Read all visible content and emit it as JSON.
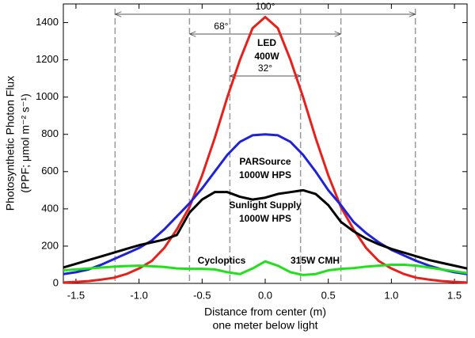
{
  "chart_data": {
    "type": "line",
    "xlabel": [
      "Distance from center (m)",
      "one meter below light"
    ],
    "ylabel": [
      "Photosynthetic Photon Flux",
      "(PPF; μmol m⁻² s⁻¹)"
    ],
    "xlim": [
      -1.6,
      1.6
    ],
    "ylim": [
      0,
      1500
    ],
    "xticks": [
      -1.5,
      {
        "value": -1.0,
        "label": "-1.0"
      },
      -0.5,
      {
        "value": 0,
        "label": "0.0"
      },
      0.5,
      {
        "value": 1.0,
        "label": "1.0"
      },
      1.5
    ],
    "yticks": [
      0,
      200,
      400,
      600,
      800,
      1000,
      1200,
      1400
    ],
    "x": [
      -1.6,
      -1.5,
      -1.4,
      -1.3,
      -1.2,
      -1.1,
      -1.0,
      -0.9,
      -0.8,
      -0.7,
      -0.6,
      -0.5,
      -0.4,
      -0.3,
      -0.2,
      -0.1,
      0,
      0.1,
      0.2,
      0.3,
      0.4,
      0.5,
      0.6,
      0.7,
      0.8,
      0.9,
      1.0,
      1.1,
      1.2,
      1.3,
      1.4,
      1.5,
      1.6
    ],
    "series": [
      {
        "labels": [
          [
            "LED",
            "400W"
          ]
        ],
        "color": "#e8201c",
        "values": [
          5,
          8,
          12,
          20,
          30,
          50,
          80,
          120,
          190,
          290,
          410,
          580,
          780,
          1000,
          1200,
          1370,
          1430,
          1370,
          1200,
          1000,
          780,
          580,
          410,
          290,
          190,
          120,
          80,
          50,
          30,
          20,
          12,
          8,
          5
        ]
      },
      {
        "labels": [
          [
            "PARSource",
            "1000W HPS"
          ]
        ],
        "color": "#1f22d8",
        "values": [
          50,
          60,
          75,
          100,
          130,
          160,
          190,
          230,
          290,
          360,
          430,
          510,
          600,
          690,
          760,
          795,
          800,
          795,
          760,
          690,
          600,
          500,
          420,
          330,
          270,
          220,
          180,
          150,
          120,
          95,
          75,
          60,
          50
        ]
      },
      {
        "labels": [
          [
            "Sunlight Supply",
            "1000W HPS"
          ]
        ],
        "color": "#000000",
        "values": [
          85,
          105,
          125,
          145,
          165,
          185,
          205,
          220,
          235,
          260,
          380,
          450,
          490,
          490,
          465,
          450,
          460,
          480,
          490,
          500,
          480,
          420,
          330,
          280,
          240,
          210,
          185,
          165,
          145,
          125,
          110,
          95,
          80
        ]
      },
      {
        "labels": [
          [
            "Cycloptics"
          ],
          [
            "315W CMH"
          ]
        ],
        "color": "#22e01e",
        "values": [
          70,
          75,
          80,
          85,
          90,
          93,
          95,
          92,
          88,
          80,
          78,
          78,
          75,
          60,
          50,
          80,
          118,
          95,
          60,
          45,
          50,
          70,
          78,
          82,
          90,
          95,
          100,
          100,
          95,
          85,
          75,
          65,
          55
        ]
      }
    ],
    "angles": [
      {
        "label": "100°",
        "x": [
          -1.19,
          1.19
        ]
      },
      {
        "label": "68°",
        "x": [
          -0.6,
          0.6
        ]
      },
      {
        "label": "32°",
        "x": [
          -0.28,
          0.28
        ]
      }
    ]
  }
}
